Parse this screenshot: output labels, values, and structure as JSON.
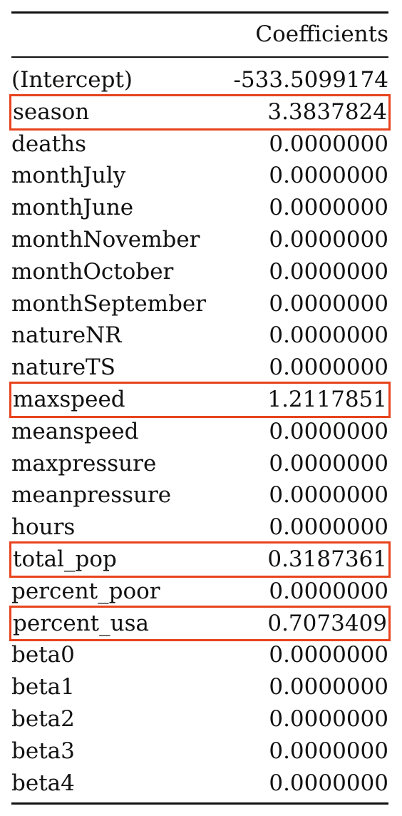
{
  "table": {
    "header": "Coefficients",
    "highlight_color": "#e8431d",
    "rows": [
      {
        "name": "(Intercept)",
        "value": "-533.5099174",
        "highlighted": false
      },
      {
        "name": "season",
        "value": "3.3837824",
        "highlighted": true
      },
      {
        "name": "deaths",
        "value": "0.0000000",
        "highlighted": false
      },
      {
        "name": "monthJuly",
        "value": "0.0000000",
        "highlighted": false
      },
      {
        "name": "monthJune",
        "value": "0.0000000",
        "highlighted": false
      },
      {
        "name": "monthNovember",
        "value": "0.0000000",
        "highlighted": false
      },
      {
        "name": "monthOctober",
        "value": "0.0000000",
        "highlighted": false
      },
      {
        "name": "monthSeptember",
        "value": "0.0000000",
        "highlighted": false
      },
      {
        "name": "natureNR",
        "value": "0.0000000",
        "highlighted": false
      },
      {
        "name": "natureTS",
        "value": "0.0000000",
        "highlighted": false
      },
      {
        "name": "maxspeed",
        "value": "1.2117851",
        "highlighted": true
      },
      {
        "name": "meanspeed",
        "value": "0.0000000",
        "highlighted": false
      },
      {
        "name": "maxpressure",
        "value": "0.0000000",
        "highlighted": false
      },
      {
        "name": "meanpressure",
        "value": "0.0000000",
        "highlighted": false
      },
      {
        "name": "hours",
        "value": "0.0000000",
        "highlighted": false
      },
      {
        "name": "total_pop",
        "value": "0.3187361",
        "highlighted": true
      },
      {
        "name": "percent_poor",
        "value": "0.0000000",
        "highlighted": false
      },
      {
        "name": "percent_usa",
        "value": "0.7073409",
        "highlighted": true
      },
      {
        "name": "beta0",
        "value": "0.0000000",
        "highlighted": false
      },
      {
        "name": "beta1",
        "value": "0.0000000",
        "highlighted": false
      },
      {
        "name": "beta2",
        "value": "0.0000000",
        "highlighted": false
      },
      {
        "name": "beta3",
        "value": "0.0000000",
        "highlighted": false
      },
      {
        "name": "beta4",
        "value": "0.0000000",
        "highlighted": false
      }
    ]
  }
}
